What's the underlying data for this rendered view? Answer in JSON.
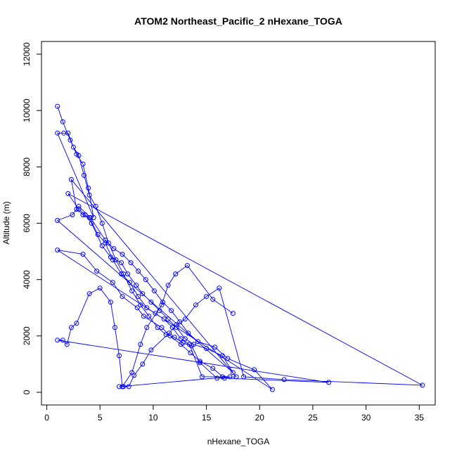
{
  "chart_data": {
    "type": "line",
    "title": "ATOM2 Northeast_Pacific_2 nHexane_TOGA",
    "xlabel": "nHexane_TOGA",
    "ylabel": "Altitude (m)",
    "xlim": [
      -0.5,
      36.5
    ],
    "ylim": [
      -450,
      12450
    ],
    "x_ticks": [
      0,
      5,
      10,
      15,
      20,
      25,
      30,
      35
    ],
    "y_ticks": [
      0,
      2000,
      4000,
      6000,
      8000,
      10000,
      12000
    ],
    "grid": false,
    "legend": "none",
    "series_color": "#0000ff",
    "x": [
      1.0,
      1.5,
      2.2,
      2.8,
      3.4,
      3.9,
      4.4,
      1.0,
      1.6,
      2.0,
      2.5,
      3.0,
      3.5,
      4.0,
      4.6,
      5.2,
      5.8,
      6.5,
      7.2,
      8.0,
      8.8,
      9.6,
      10.4,
      11.2,
      12.0,
      12.8,
      13.6,
      14.4,
      16.0,
      17.8,
      2.3,
      2.8,
      3.4,
      4.0,
      4.8,
      5.5,
      6.2,
      7.0,
      7.8,
      8.6,
      9.4,
      10.2,
      11.0,
      11.8,
      12.6,
      13.4,
      14.6,
      16.5,
      17.2,
      6.8,
      7.2,
      7.7,
      8.2,
      9.0,
      9.8,
      11.5,
      12.2,
      13.0,
      14.0,
      15.0,
      16.2,
      18.5,
      22.3,
      35.3,
      2.0,
      3.0,
      3.6,
      4.2,
      5.2,
      6.0,
      7.0,
      7.6,
      8.4,
      9.0,
      9.8,
      10.6,
      11.4,
      12.2,
      13.0,
      13.8,
      15.0,
      16.5,
      17.5,
      1.0,
      2.4,
      3.0,
      4.1,
      5.5,
      6.3,
      7.1,
      7.9,
      8.6,
      9.3,
      10.1,
      10.9,
      11.7,
      12.5,
      13.3,
      14.2,
      15.8,
      17.0,
      19.5,
      21.2,
      1.0,
      3.4,
      4.7,
      6.2,
      7.1,
      8.5,
      9.1,
      10.8,
      11.6,
      12.6,
      13.5,
      14.4,
      15.6,
      16.7,
      26.5,
      1.0,
      1.5,
      1.9,
      2.3,
      2.8,
      4.0,
      5.0,
      6.0,
      6.4,
      6.8,
      7.1,
      8.0,
      8.8,
      9.4,
      10.8,
      11.4,
      12.1,
      13.2,
      15.6,
      17.5
    ],
    "y": [
      10150,
      9600,
      8950,
      8450,
      8100,
      7250,
      6200,
      9200,
      9200,
      9200,
      8700,
      8400,
      7700,
      7000,
      6600,
      6000,
      5300,
      4700,
      4200,
      3600,
      3100,
      2700,
      2300,
      2050,
      1950,
      1750,
      1650,
      1050,
      500,
      550,
      7550,
      6500,
      6300,
      6200,
      5600,
      5300,
      4700,
      4200,
      3900,
      3400,
      3000,
      2800,
      2600,
      2300,
      1900,
      1700,
      550,
      550,
      550,
      200,
      200,
      200,
      600,
      1000,
      1500,
      2100,
      2400,
      2600,
      3100,
      3400,
      3700,
      550,
      450,
      250,
      7050,
      6500,
      6300,
      6000,
      5200,
      4800,
      4600,
      4200,
      3800,
      3500,
      3200,
      2900,
      2600,
      2300,
      1900,
      1700,
      1550,
      1300,
      700,
      6100,
      6300,
      6600,
      6200,
      5400,
      5100,
      4900,
      4600,
      4300,
      4000,
      3600,
      3200,
      2900,
      2500,
      2100,
      1800,
      1600,
      1200,
      800,
      100,
      5050,
      4900,
      4300,
      3900,
      3400,
      3000,
      2700,
      2300,
      2000,
      1700,
      1400,
      1100,
      850,
      500,
      350,
      1850,
      1850,
      1700,
      2300,
      2450,
      3500,
      3700,
      3200,
      2300,
      1300,
      200,
      700,
      1700,
      2300,
      3100,
      3800,
      4200,
      4500,
      3300,
      2800
    ]
  }
}
